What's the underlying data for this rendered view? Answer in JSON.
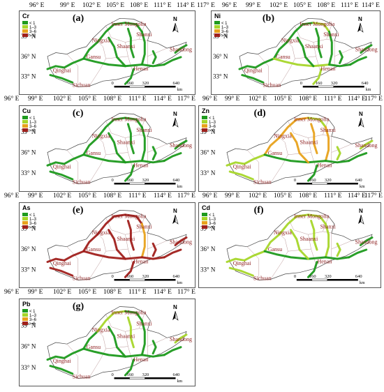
{
  "longitude_labels": [
    "96° E",
    "99° E",
    "102° E",
    "105° E",
    "108° E",
    "111° E",
    "114° E",
    "117° E"
  ],
  "latitude_labels": [
    "39° N",
    "36° N",
    "33° N"
  ],
  "legend_classes": [
    "< 1",
    "1–3",
    "3–6",
    "> 6"
  ],
  "class_colors": [
    "#1e9a1e",
    "#a6d62a",
    "#e8a21c",
    "#a0201c"
  ],
  "north_label": "N",
  "scale": {
    "ticks": [
      "0",
      "160",
      "320",
      "640"
    ],
    "unit": "km"
  },
  "region_labels": [
    "Inner Mongolia",
    "Ningxia",
    "Shaanxi",
    "Shanxi",
    "Shandong",
    "Gansu",
    "Qinghai",
    "Henan",
    "Sichuan"
  ],
  "panels": [
    {
      "element": "Cr",
      "letter": "(a)",
      "river_class": 0,
      "segments": [
        0,
        0,
        0,
        0,
        0,
        0,
        0,
        0,
        0,
        0,
        0,
        0,
        0,
        0
      ]
    },
    {
      "element": "Ni",
      "letter": "(b)",
      "river_class": 0,
      "segments": [
        0,
        0,
        0,
        0,
        1,
        0,
        0,
        1,
        0,
        0,
        0,
        1,
        0,
        0
      ]
    },
    {
      "element": "Cu",
      "letter": "(c)",
      "river_class": 0,
      "segments": [
        0,
        0,
        0,
        0,
        0,
        0,
        0,
        0,
        0,
        0,
        0,
        0,
        0,
        0
      ]
    },
    {
      "element": "Zn",
      "letter": "(d)",
      "river_class": 1,
      "segments": [
        1,
        1,
        2,
        2,
        1,
        2,
        2,
        0,
        0,
        2,
        1,
        0,
        0,
        1
      ]
    },
    {
      "element": "As",
      "letter": "(e)",
      "river_class": 3,
      "segments": [
        3,
        3,
        3,
        3,
        3,
        2,
        3,
        3,
        3,
        3,
        3,
        3,
        3,
        3
      ]
    },
    {
      "element": "Cd",
      "letter": "(f)",
      "river_class": 1,
      "segments": [
        1,
        1,
        1,
        1,
        1,
        1,
        1,
        0,
        0,
        1,
        1,
        0,
        0,
        0
      ]
    },
    {
      "element": "Pb",
      "letter": "(g)",
      "river_class": 0,
      "segments": [
        0,
        0,
        0,
        1,
        0,
        0,
        1,
        0,
        0,
        0,
        0,
        0,
        0,
        1
      ]
    }
  ]
}
